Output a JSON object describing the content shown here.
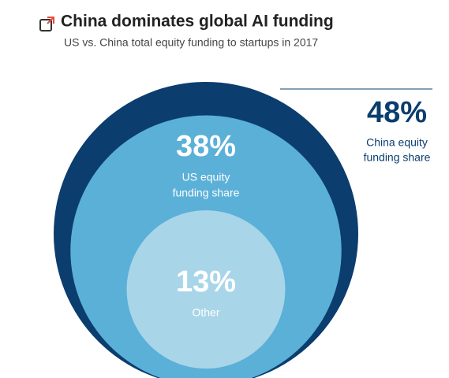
{
  "chart_data": {
    "type": "nested-circles",
    "title": "China dominates global AI funding",
    "subtitle": "US vs. China total equity funding to startups in 2017",
    "categories": [
      [
        "China equity",
        "funding share"
      ],
      [
        "US equity",
        "funding share"
      ],
      [
        "Other"
      ]
    ],
    "values": [
      48,
      38,
      13
    ],
    "value_labels": [
      "48%",
      "38%",
      "13%"
    ],
    "colors": [
      "#0b3d6e",
      "#5bb0d8",
      "#a9d5e9"
    ]
  }
}
